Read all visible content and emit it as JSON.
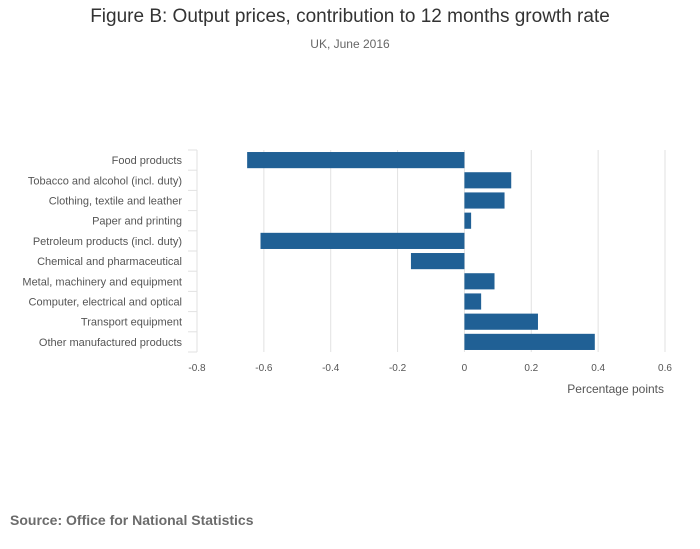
{
  "chart_data": {
    "type": "bar",
    "orientation": "horizontal",
    "title": "Figure B: Output prices, contribution to 12 months growth rate",
    "subtitle": "UK, June 2016",
    "xlabel": "Percentage points",
    "ylabel": "",
    "xlim": [
      -0.8,
      0.6
    ],
    "xticks": [
      -0.8,
      -0.6,
      -0.4,
      -0.2,
      0,
      0.2,
      0.4,
      0.6
    ],
    "xtick_labels": [
      "-0.8",
      "-0.6",
      "-0.4",
      "-0.2",
      "0",
      "0.2",
      "0.4",
      "0.6"
    ],
    "grid": true,
    "categories": [
      "Food products",
      "Tobacco and alcohol (incl. duty)",
      "Clothing, textile and leather",
      "Paper and printing",
      "Petroleum products (incl. duty)",
      "Chemical and pharmaceutical",
      "Metal, machinery and equipment",
      "Computer, electrical and optical",
      "Transport equipment",
      "Other manufactured products"
    ],
    "values": [
      -0.65,
      0.14,
      0.12,
      0.02,
      -0.61,
      -0.16,
      0.09,
      0.05,
      0.22,
      0.39
    ],
    "bar_color": "#206095",
    "source": "Source: Office for National Statistics"
  }
}
